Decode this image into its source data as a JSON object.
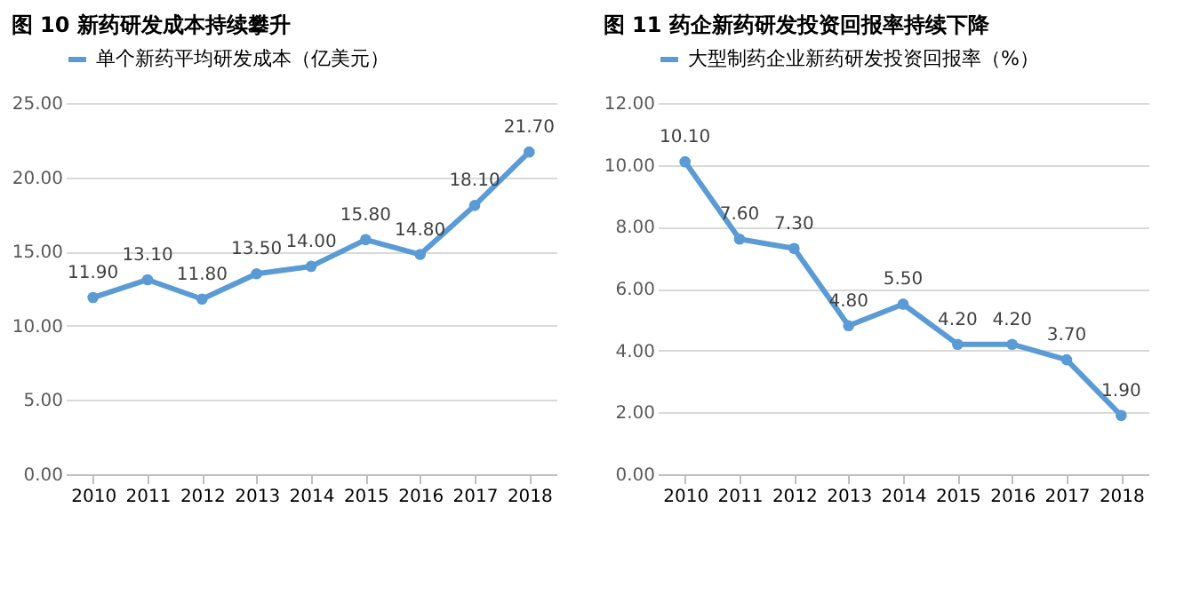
{
  "chart_data": [
    {
      "type": "line",
      "title": "图 10    新药研发成本持续攀升",
      "categories": [
        "2010",
        "2011",
        "2012",
        "2013",
        "2014",
        "2015",
        "2016",
        "2017",
        "2018"
      ],
      "series": [
        {
          "name": "单个新药平均研发成本（亿美元）",
          "color": "#5b9bd5",
          "values": [
            11.9,
            13.1,
            11.8,
            13.5,
            14.0,
            15.8,
            14.8,
            18.1,
            21.7
          ],
          "value_labels": [
            "11.90",
            "13.10",
            "11.80",
            "13.50",
            "14.00",
            "15.80",
            "14.80",
            "18.10",
            "21.70"
          ]
        }
      ],
      "ylim": [
        0,
        25
      ],
      "yticks": [
        {
          "value": 0,
          "label": "0.00"
        },
        {
          "value": 5,
          "label": "5.00"
        },
        {
          "value": 10,
          "label": "10.00"
        },
        {
          "value": 15,
          "label": "15.00"
        },
        {
          "value": 20,
          "label": "20.00"
        },
        {
          "value": 25,
          "label": "25.00"
        }
      ],
      "grid": "y",
      "legend": "top",
      "marker": "circle",
      "line_style": "solid"
    },
    {
      "type": "line",
      "title": "图 11    药企新药研发投资回报率持续下降",
      "categories": [
        "2010",
        "2011",
        "2012",
        "2013",
        "2014",
        "2015",
        "2016",
        "2017",
        "2018"
      ],
      "series": [
        {
          "name": "大型制药企业新药研发投资回报率（%）",
          "color": "#5b9bd5",
          "values": [
            10.1,
            7.6,
            7.3,
            4.8,
            5.5,
            4.2,
            4.2,
            3.7,
            1.9
          ],
          "value_labels": [
            "10.10",
            "7.60",
            "7.30",
            "4.80",
            "5.50",
            "4.20",
            "4.20",
            "3.70",
            "1.90"
          ]
        }
      ],
      "ylim": [
        0,
        12
      ],
      "yticks": [
        {
          "value": 0,
          "label": "0.00"
        },
        {
          "value": 2,
          "label": "2.00"
        },
        {
          "value": 4,
          "label": "4.00"
        },
        {
          "value": 6,
          "label": "6.00"
        },
        {
          "value": 8,
          "label": "8.00"
        },
        {
          "value": 10,
          "label": "10.00"
        },
        {
          "value": 12,
          "label": "12.00"
        }
      ],
      "grid": "y",
      "legend": "top",
      "marker": "circle",
      "line_style": "solid"
    }
  ]
}
